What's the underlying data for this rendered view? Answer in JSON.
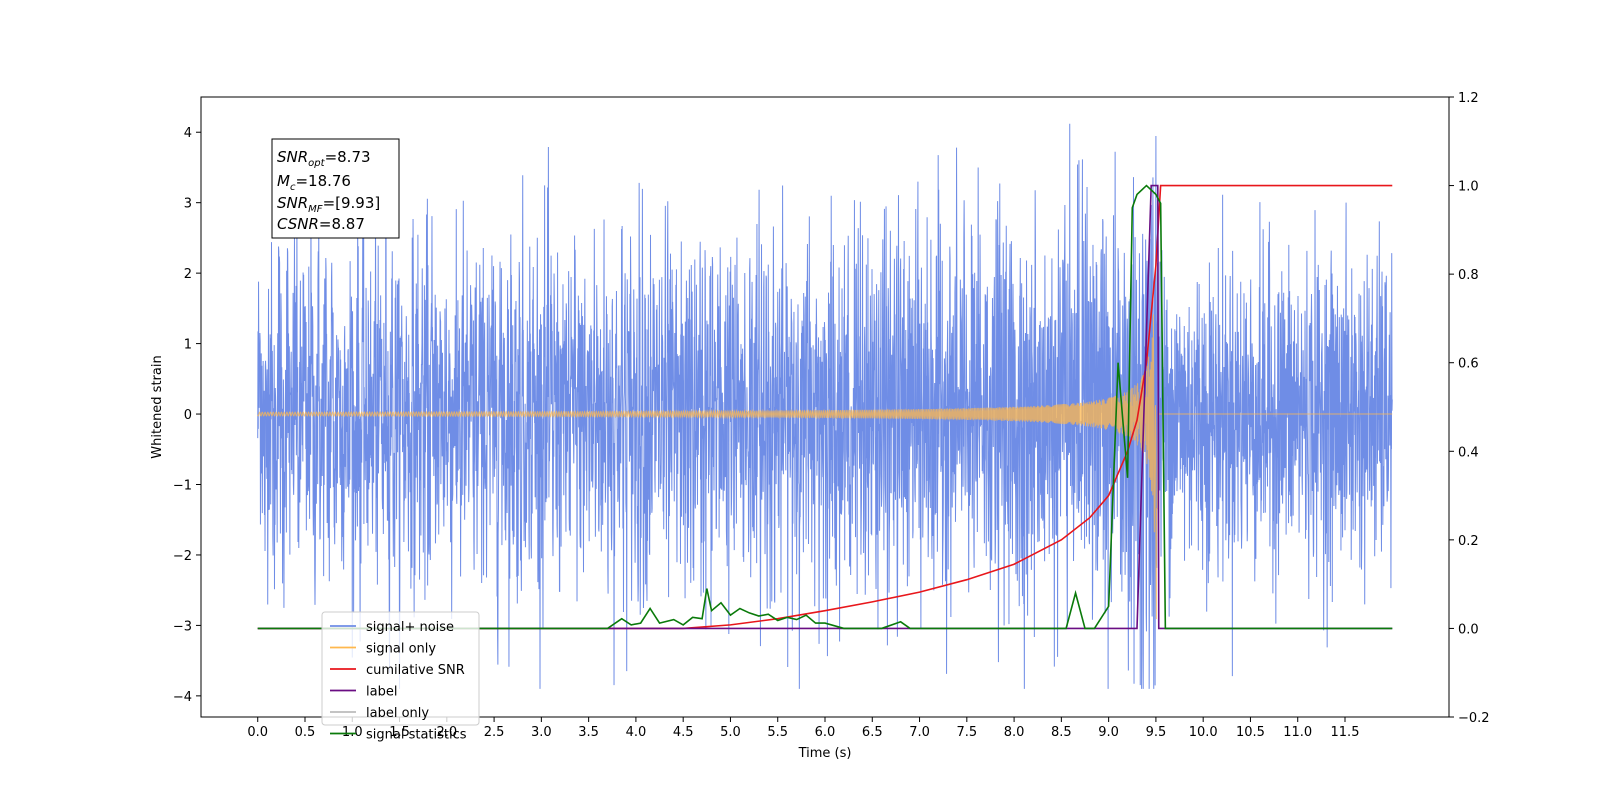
{
  "chart_data": {
    "type": "line",
    "xlabel": "Time (s)",
    "ylabel": "Whitened strain",
    "x_range": [
      -0.6,
      12.6
    ],
    "y_left_range": [
      -4.3,
      4.5
    ],
    "y_right_range": [
      -0.2,
      1.2
    ],
    "x_ticks": [
      "0.0",
      "0.5",
      "1.0",
      "1.5",
      "2.0",
      "2.5",
      "3.0",
      "3.5",
      "4.0",
      "4.5",
      "5.0",
      "5.5",
      "6.0",
      "6.5",
      "7.0",
      "7.5",
      "8.0",
      "8.5",
      "9.0",
      "9.5",
      "10.0",
      "10.5",
      "11.0",
      "11.5"
    ],
    "y_left_ticks": [
      "4",
      "3",
      "2",
      "1",
      "0",
      "−1",
      "−2",
      "−3",
      "−4"
    ],
    "y_right_ticks": [
      "1.2",
      "1.0",
      "0.8",
      "0.6",
      "0.4",
      "0.2",
      "0.0",
      "−0.2"
    ],
    "grid": false,
    "legend_position": "lower-left",
    "annotation": {
      "snr_opt": {
        "base": "SNR",
        "sub": "opt",
        "value": "=8.73"
      },
      "mc": {
        "base": "M",
        "sub": "c",
        "value": "=18.76"
      },
      "snr_mf": {
        "base": "SNR",
        "sub": "MF",
        "value": "=[9.93]"
      },
      "csnr": {
        "base": "CSNR",
        "sub": "",
        "value": "=8.87"
      }
    },
    "series": [
      {
        "name": "signal+ noise",
        "color": "#6f8de6",
        "axis": "left",
        "x_start": 0.0,
        "x_end": 12.0,
        "noise_sigma": 1.1,
        "min": -3.9,
        "max": 4.12
      },
      {
        "name": "signal only",
        "color": "#ffb84d",
        "axis": "left",
        "x_start": 0.0,
        "x_end": 12.0,
        "merger_time": 9.52,
        "peak_amplitude": 3.3
      },
      {
        "name": "cumilative SNR",
        "color": "#e8161b",
        "axis": "right",
        "x": [
          0.0,
          4.5,
          5.0,
          5.5,
          6.0,
          6.5,
          7.0,
          7.5,
          8.0,
          8.5,
          8.8,
          9.0,
          9.2,
          9.3,
          9.4,
          9.5,
          9.55,
          12.0
        ],
        "y": [
          0.0,
          0.0,
          0.008,
          0.022,
          0.04,
          0.06,
          0.082,
          0.11,
          0.145,
          0.2,
          0.25,
          0.3,
          0.4,
          0.47,
          0.6,
          0.82,
          1.0,
          1.0
        ]
      },
      {
        "name": "label",
        "color": "#6a0d83",
        "axis": "right",
        "x": [
          0.0,
          9.3,
          9.45,
          9.5,
          9.52,
          9.53,
          12.0
        ],
        "y": [
          0.0,
          0.0,
          1.0,
          1.0,
          1.0,
          0.0,
          0.0
        ]
      },
      {
        "name": "label only",
        "color": "#bbbbbb",
        "axis": "right",
        "x": [],
        "y": []
      },
      {
        "name": "signal statistics",
        "color": "#0a7a0a",
        "axis": "right",
        "x": [
          0.0,
          3.7,
          3.85,
          3.95,
          4.05,
          4.15,
          4.25,
          4.4,
          4.5,
          4.6,
          4.7,
          4.75,
          4.8,
          4.9,
          5.0,
          5.1,
          5.2,
          5.3,
          5.4,
          5.5,
          5.6,
          5.7,
          5.8,
          5.9,
          6.0,
          6.2,
          6.6,
          6.8,
          6.9,
          7.0,
          7.2,
          8.55,
          8.65,
          8.75,
          8.85,
          9.0,
          9.1,
          9.2,
          9.25,
          9.3,
          9.4,
          9.5,
          9.55,
          9.6,
          12.0
        ],
        "y": [
          0.0,
          0.0,
          0.022,
          0.008,
          0.012,
          0.045,
          0.012,
          0.02,
          0.008,
          0.025,
          0.022,
          0.09,
          0.04,
          0.058,
          0.03,
          0.045,
          0.035,
          0.028,
          0.032,
          0.018,
          0.025,
          0.02,
          0.03,
          0.012,
          0.012,
          0.0,
          0.0,
          0.015,
          0.0,
          0.0,
          0.0,
          0.0,
          0.08,
          0.0,
          0.0,
          0.05,
          0.6,
          0.34,
          0.95,
          0.98,
          1.0,
          0.98,
          0.96,
          0.0,
          0.0
        ]
      }
    ]
  }
}
